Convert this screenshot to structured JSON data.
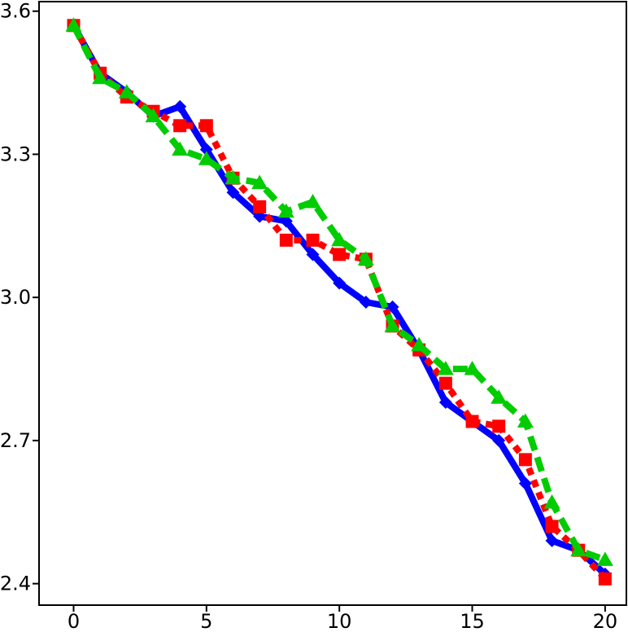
{
  "chart_data": {
    "type": "line",
    "title": "",
    "xlabel": "",
    "ylabel": "",
    "xlim": [
      -1.3,
      20.8
    ],
    "ylim": [
      2.355,
      3.62
    ],
    "grid": false,
    "x_ticks": [
      0,
      5,
      10,
      15,
      20
    ],
    "x_tick_labels": [
      "0",
      "5",
      "10",
      "15",
      "20"
    ],
    "y_ticks": [
      2.4,
      2.7,
      3.0,
      3.3,
      3.6
    ],
    "y_tick_labels": [
      "2.4",
      "2.7",
      "3.0",
      "3.3",
      "3.6"
    ],
    "x": [
      0,
      1,
      2,
      3,
      4,
      5,
      6,
      7,
      8,
      9,
      10,
      11,
      12,
      13,
      14,
      15,
      16,
      17,
      18,
      19,
      20
    ],
    "series": [
      {
        "color": "#0000ff",
        "line_style": "solid",
        "marker": "diamond",
        "values": [
          3.57,
          3.47,
          3.43,
          3.38,
          3.4,
          3.31,
          3.22,
          3.17,
          3.16,
          3.09,
          3.03,
          2.99,
          2.98,
          2.89,
          2.78,
          2.74,
          2.7,
          2.61,
          2.49,
          2.47,
          2.42
        ]
      },
      {
        "color": "#ff0000",
        "line_style": "dotted",
        "marker": "square",
        "values": [
          3.57,
          3.47,
          3.42,
          3.39,
          3.36,
          3.36,
          3.25,
          3.19,
          3.12,
          3.12,
          3.09,
          3.08,
          2.94,
          2.89,
          2.82,
          2.74,
          2.73,
          2.66,
          2.52,
          2.47,
          2.41
        ]
      },
      {
        "color": "#00cc00",
        "line_style": "dashed",
        "marker": "triangle",
        "values": [
          3.57,
          3.46,
          3.43,
          3.38,
          3.31,
          3.29,
          3.25,
          3.24,
          3.18,
          3.2,
          3.12,
          3.08,
          2.94,
          2.9,
          2.85,
          2.85,
          2.79,
          2.74,
          2.57,
          2.47,
          2.45
        ]
      }
    ]
  }
}
